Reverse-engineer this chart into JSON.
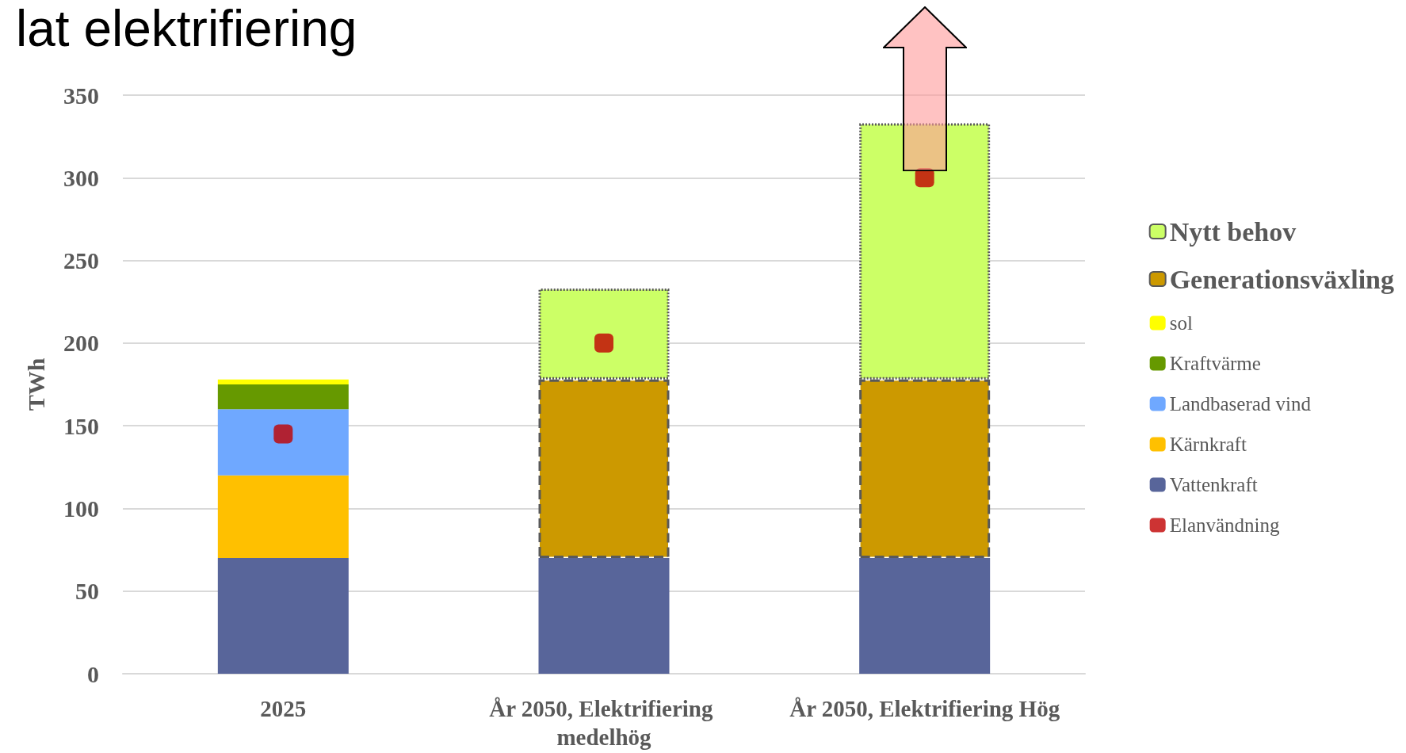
{
  "chart_data": {
    "type": "bar",
    "title": "lat elektrifiering",
    "ylabel": "TWh",
    "categories": [
      "2025",
      "År 2050, Elektrifiering medelhög",
      "År 2050, Elektrifiering Hög"
    ],
    "stacked": true,
    "series": [
      {
        "name": "Vattenkraft",
        "color": "#58659a",
        "values": [
          70,
          70,
          70
        ]
      },
      {
        "name": "Kärnkraft",
        "color": "#ffc000",
        "values": [
          50,
          null,
          null
        ]
      },
      {
        "name": "Landbaserad vind",
        "color": "#6fa8ff",
        "values": [
          40,
          null,
          null
        ]
      },
      {
        "name": "Kraftvärme",
        "color": "#669900",
        "values": [
          15,
          null,
          null
        ]
      },
      {
        "name": "sol",
        "color": "#ffff00",
        "values": [
          3,
          null,
          null
        ]
      },
      {
        "name": "Generationsväxling",
        "color": "#cc9900",
        "line_style": "dashed",
        "values": [
          null,
          108,
          108
        ]
      },
      {
        "name": "Nytt behov",
        "color": "#ccff66",
        "line_style": "dotted",
        "values": [
          null,
          55,
          155
        ]
      },
      {
        "name": "Elanvändning",
        "type": "scatter",
        "color": "#c00000",
        "marker": "square",
        "values": [
          145,
          200,
          300
        ]
      }
    ],
    "ylim": [
      0,
      350
    ],
    "yticks": [
      0,
      50,
      100,
      150,
      200,
      250,
      300,
      350
    ],
    "grid": "y",
    "legend": "right"
  }
}
